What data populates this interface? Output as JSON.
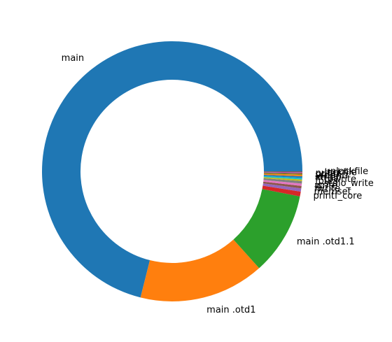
{
  "chart_data": {
    "type": "pie",
    "title": "",
    "donut": true,
    "start_angle_deg": 0,
    "direction": "counterclockwise",
    "slices": [
      {
        "label": "main",
        "value": 71.3,
        "color": "#1f77b4"
      },
      {
        "label": "main .otd1",
        "value": 15.6,
        "color": "#ff7f0e"
      },
      {
        "label": "main .otd1.1",
        "value": 10.3,
        "color": "#2ca02c"
      },
      {
        "label": "printf_core",
        "value": 0.6,
        "color": "#d62728"
      },
      {
        "label": "memset",
        "value": 0.4,
        "color": "#9467bd"
      },
      {
        "label": "fwrite",
        "value": 0.3,
        "color": "#8c564b"
      },
      {
        "label": "write",
        "value": 0.3,
        "color": "#e377c2"
      },
      {
        "label": "__stdio_write",
        "value": 0.3,
        "color": "#7f7f7f"
      },
      {
        "label": "fputs",
        "value": 0.2,
        "color": "#bcbd22"
      },
      {
        "label": "__towrite",
        "value": 0.2,
        "color": "#17becf"
      },
      {
        "label": "strlen",
        "value": 0.2,
        "color": "#1f77b4"
      },
      {
        "label": "vfprintf",
        "value": 0.2,
        "color": "#ff7f0e"
      },
      {
        "label": "printf",
        "value": 0.1,
        "color": "#2ca02c"
      },
      {
        "label": "puts",
        "value": 0.1,
        "color": "#d62728"
      },
      {
        "label": "__lockfile",
        "value": 0.1,
        "color": "#9467bd"
      },
      {
        "label": "__unlockfile",
        "value": 0.1,
        "color": "#8c564b"
      }
    ]
  }
}
